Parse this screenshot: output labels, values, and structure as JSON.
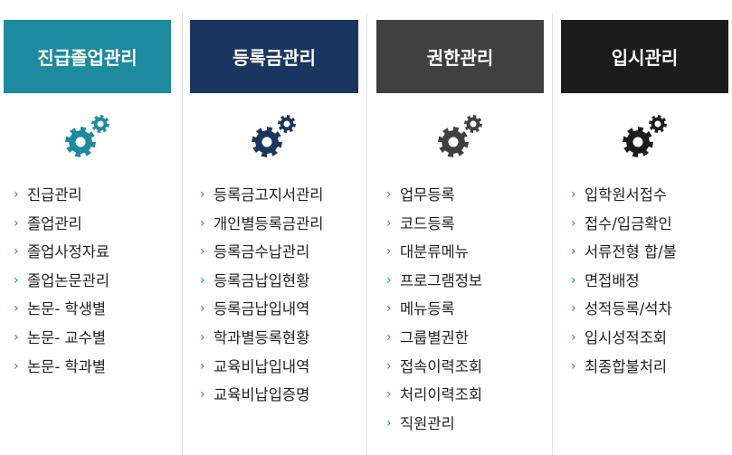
{
  "columns": [
    {
      "id": "graduation",
      "title": "진급졸업관리",
      "color": "#1d8aa0",
      "gear_color": "#1d8aa0",
      "icon": "gears-icon",
      "items": [
        "진급관리",
        "졸업관리",
        "졸업사정자료",
        "졸업논문관리",
        "논문- 학생별",
        "논문- 교수별",
        "논문- 학과별"
      ]
    },
    {
      "id": "tuition",
      "title": "등록금관리",
      "color": "#1a3660",
      "gear_color": "#1a3660",
      "icon": "gears-icon",
      "items": [
        "등록금고지서관리",
        "개인별등록금관리",
        "등록금수납관리",
        "등록금납입현황",
        "등록금납입내역",
        "학과별등록현황",
        "교육비납입내역",
        "교육비납입증명"
      ]
    },
    {
      "id": "permission",
      "title": "권한관리",
      "color": "#404040",
      "gear_color": "#404040",
      "icon": "gears-icon",
      "items": [
        "업무등록",
        "코드등록",
        "대분류메뉴",
        "프로그램정보",
        "메뉴등록",
        "그룹별권한",
        "접속이력조회",
        "처리이력조회",
        "직원관리"
      ]
    },
    {
      "id": "admission",
      "title": "입시관리",
      "color": "#1c1c1c",
      "gear_color": "#1c1c1c",
      "icon": "gears-icon",
      "items": [
        "입학원서접수",
        "접수/입금확인",
        "서류전형 합/불",
        "면접배정",
        "성적등록/석차",
        "입시성적조회",
        "최종합불처리"
      ]
    }
  ],
  "bullet_icon": "chevron-right-icon",
  "bullet_color": "#1e8aa6"
}
